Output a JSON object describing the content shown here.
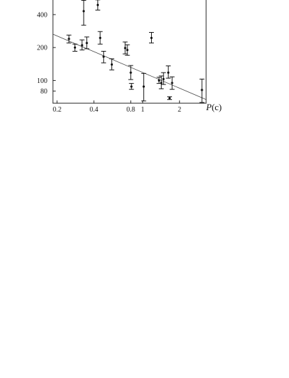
{
  "chart_data": {
    "type": "scatter",
    "title": "",
    "xlabel_italic": "P",
    "xlabel_rest": "(c)",
    "ylabel": "",
    "x_scale": "log",
    "y_scale": "log",
    "xlim": [
      0.185,
      3.3
    ],
    "ylim": [
      62,
      560
    ],
    "xticks": [
      {
        "v": 0.2,
        "label": "0.2"
      },
      {
        "v": 0.4,
        "label": "0.4"
      },
      {
        "v": 0.8,
        "label": "0.8"
      },
      {
        "v": 1,
        "label": "1"
      },
      {
        "v": 2,
        "label": "2"
      }
    ],
    "yticks": [
      {
        "v": 80,
        "label": "80"
      },
      {
        "v": 100,
        "label": "100"
      },
      {
        "v": 200,
        "label": "200"
      },
      {
        "v": 400,
        "label": "400"
      }
    ],
    "grid": false,
    "points": [
      {
        "x": 0.25,
        "y": 240,
        "lo": 220,
        "hi": 260
      },
      {
        "x": 0.28,
        "y": 200,
        "lo": 185,
        "hi": 215
      },
      {
        "x": 0.32,
        "y": 210,
        "lo": 190,
        "hi": 235
      },
      {
        "x": 0.33,
        "y": 430,
        "lo": 320,
        "hi": 540
      },
      {
        "x": 0.35,
        "y": 220,
        "lo": 195,
        "hi": 250
      },
      {
        "x": 0.43,
        "y": 490,
        "lo": 440,
        "hi": 545
      },
      {
        "x": 0.45,
        "y": 245,
        "lo": 215,
        "hi": 280
      },
      {
        "x": 0.48,
        "y": 165,
        "lo": 145,
        "hi": 185
      },
      {
        "x": 0.56,
        "y": 140,
        "lo": 125,
        "hi": 158
      },
      {
        "x": 0.72,
        "y": 198,
        "lo": 175,
        "hi": 225
      },
      {
        "x": 0.75,
        "y": 190,
        "lo": 170,
        "hi": 212
      },
      {
        "x": 0.8,
        "y": 118,
        "lo": 102,
        "hi": 137
      },
      {
        "x": 0.81,
        "y": 88,
        "lo": 83,
        "hi": 94
      },
      {
        "x": 1.02,
        "y": 88,
        "lo": 65,
        "hi": 116
      },
      {
        "x": 1.18,
        "y": 245,
        "lo": 220,
        "hi": 275
      },
      {
        "x": 1.36,
        "y": 100,
        "lo": 94,
        "hi": 107
      },
      {
        "x": 1.42,
        "y": 95,
        "lo": 84,
        "hi": 110
      },
      {
        "x": 1.48,
        "y": 103,
        "lo": 92,
        "hi": 118
      },
      {
        "x": 1.62,
        "y": 118,
        "lo": 105,
        "hi": 136
      },
      {
        "x": 1.66,
        "y": 69,
        "lo": 67,
        "hi": 71
      },
      {
        "x": 1.74,
        "y": 95,
        "lo": 83,
        "hi": 108
      },
      {
        "x": 3.05,
        "y": 82,
        "lo": 63,
        "hi": 103
      }
    ],
    "fit_line": {
      "x": [
        0.185,
        3.3
      ],
      "y": [
        265,
        67
      ]
    }
  }
}
